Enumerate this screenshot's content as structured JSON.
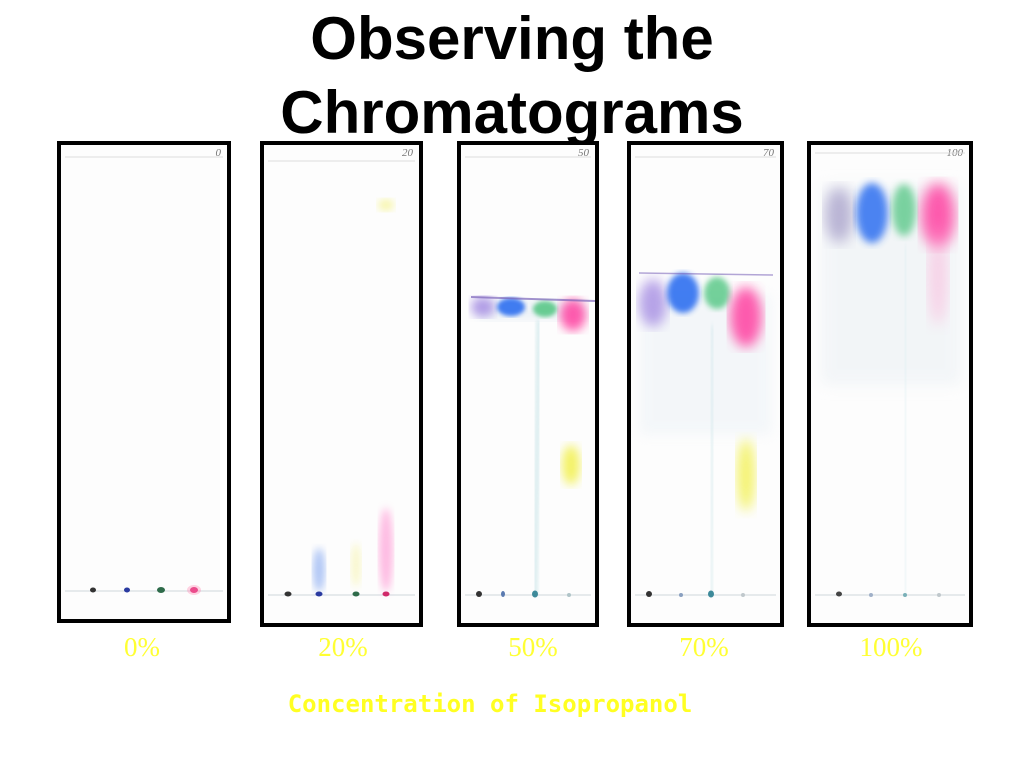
{
  "title": "Observing the\nChromatograms",
  "caption": "Concentration of Isopropanol",
  "strips": [
    {
      "label": "0%",
      "corner": "0"
    },
    {
      "label": "20%",
      "corner": "20"
    },
    {
      "label": "50%",
      "corner": "50"
    },
    {
      "label": "70%",
      "corner": "70"
    },
    {
      "label": "100%",
      "corner": "100"
    }
  ],
  "colors": {
    "label_yellow": "#ffff33",
    "purple": "#9b7fe0",
    "blue": "#2f6ff0",
    "green": "#46c27a",
    "magenta": "#ff3fa0",
    "yellow_dye": "#f2f04a"
  }
}
